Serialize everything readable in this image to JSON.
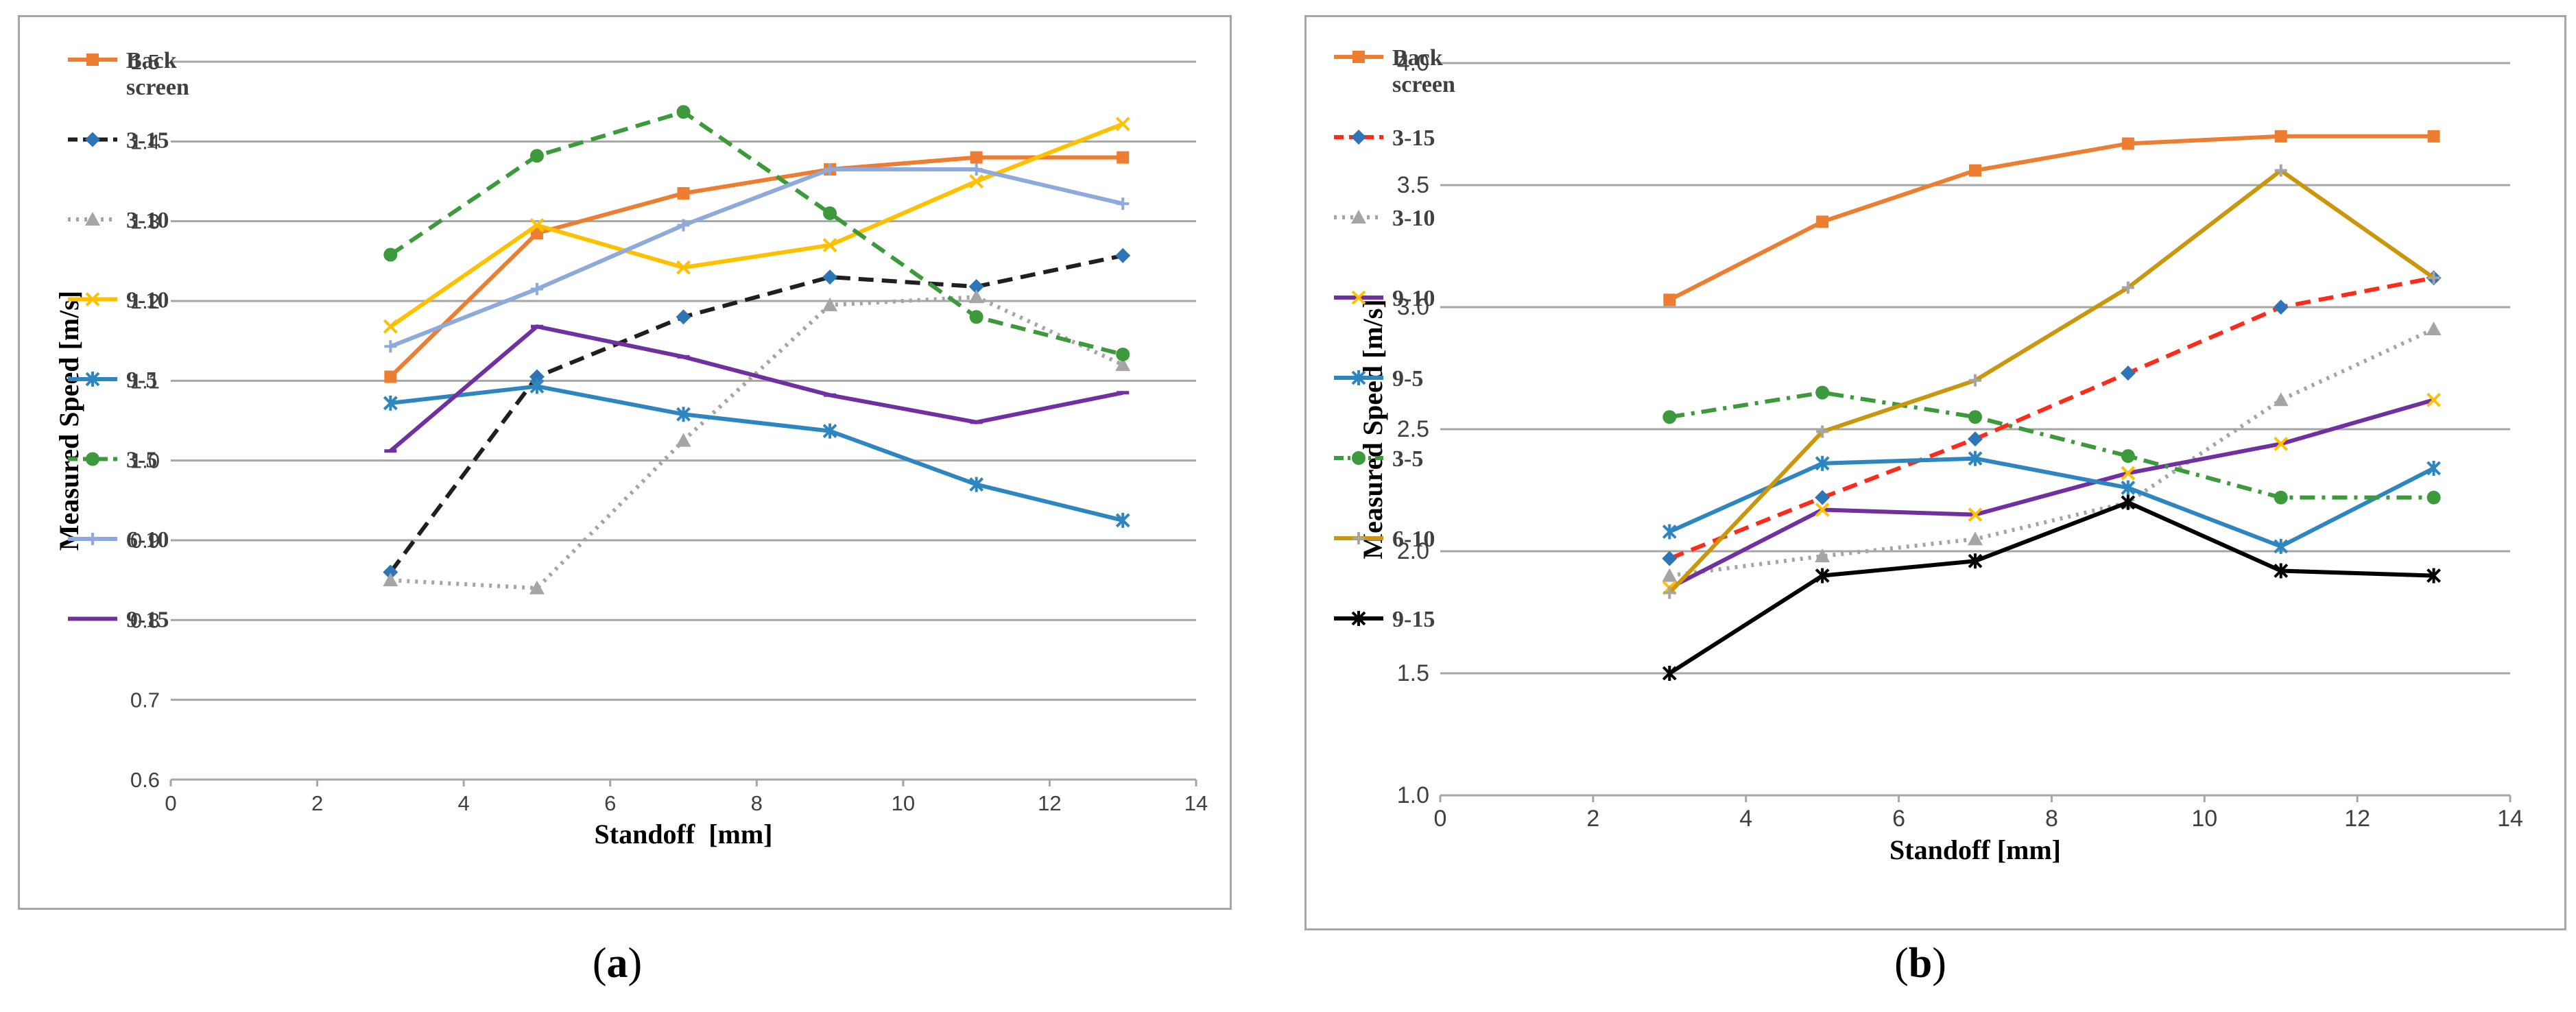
{
  "sublabels": {
    "a": "a",
    "b": "b"
  },
  "chart_data": [
    {
      "id": "a",
      "type": "line",
      "xlabel": "Standoff  [mm]",
      "ylabel": "Measured Speed [m/s]",
      "xlim": [
        0,
        14
      ],
      "ylim": [
        0.6,
        1.5
      ],
      "xticks": [
        0,
        2,
        4,
        6,
        8,
        10,
        12,
        14
      ],
      "yticks": [
        0.6,
        0.7,
        0.8,
        0.9,
        1.0,
        1.1,
        1.2,
        1.3,
        1.4,
        1.5
      ],
      "ytick_decimals": 1,
      "grid": "horizontal",
      "legend_placement": "left",
      "x": [
        3,
        5,
        7,
        9,
        11,
        13
      ],
      "series": [
        {
          "name": "Back screen",
          "values": [
            1.105,
            1.285,
            1.335,
            1.365,
            1.38,
            1.38
          ],
          "color": "#ED7D31",
          "dash": "solid",
          "marker": "square"
        },
        {
          "name": "3-15",
          "values": [
            0.86,
            1.105,
            1.18,
            1.23,
            1.218,
            1.257
          ],
          "color": "#1F1F1F",
          "dash": "dash",
          "marker": "diamond",
          "marker_color": "#2E75B6"
        },
        {
          "name": "3-10",
          "values": [
            0.85,
            0.84,
            1.025,
            1.195,
            1.205,
            1.12
          ],
          "color": "#A5A5A5",
          "dash": "dot",
          "marker": "triangle"
        },
        {
          "name": "9-10",
          "values": [
            1.168,
            1.295,
            1.242,
            1.27,
            1.35,
            1.422
          ],
          "color": "#FFC000",
          "dash": "solid",
          "marker": "x"
        },
        {
          "name": "9-5",
          "values": [
            1.072,
            1.093,
            1.058,
            1.037,
            0.97,
            0.925
          ],
          "color": "#2E86C1",
          "dash": "solid",
          "marker": "star"
        },
        {
          "name": "3-5",
          "values": [
            1.258,
            1.382,
            1.437,
            1.31,
            1.18,
            1.133
          ],
          "color": "#3C9A3C",
          "dash": "dash",
          "marker": "circle"
        },
        {
          "name": "6-10",
          "values": [
            1.143,
            1.215,
            1.295,
            1.365,
            1.365,
            1.322
          ],
          "color": "#8EA9DB",
          "dash": "solid",
          "marker": "plus"
        },
        {
          "name": "9-15",
          "values": [
            1.012,
            1.168,
            1.13,
            1.082,
            1.048,
            1.085
          ],
          "color": "#7030A0",
          "dash": "solid",
          "marker": "dash"
        }
      ]
    },
    {
      "id": "b",
      "type": "line",
      "xlabel": "Standoff [mm]",
      "ylabel": "Measured Speed [m/s]",
      "xlim": [
        0,
        14
      ],
      "ylim": [
        1.0,
        4.0
      ],
      "xticks": [
        0,
        2,
        4,
        6,
        8,
        10,
        12,
        14
      ],
      "yticks": [
        1.0,
        1.5,
        2.0,
        2.5,
        3.0,
        3.5,
        4.0
      ],
      "ytick_decimals": 1,
      "grid": "horizontal",
      "legend_placement": "left",
      "x": [
        3,
        5,
        7,
        9,
        11,
        13
      ],
      "series": [
        {
          "name": "Back screen",
          "values": [
            3.03,
            3.35,
            3.56,
            3.67,
            3.7,
            3.7
          ],
          "color": "#ED7D31",
          "dash": "solid",
          "marker": "square"
        },
        {
          "name": "3-15",
          "values": [
            1.97,
            2.22,
            2.46,
            2.73,
            3.0,
            3.12
          ],
          "color": "#FF2A1A",
          "dash": "dash",
          "marker": "diamond",
          "marker_color": "#2E75B6"
        },
        {
          "name": "3-10",
          "values": [
            1.9,
            1.98,
            2.05,
            2.2,
            2.62,
            2.91
          ],
          "color": "#A5A5A5",
          "dash": "dot",
          "marker": "triangle"
        },
        {
          "name": "9-10",
          "values": [
            1.85,
            2.17,
            2.15,
            2.32,
            2.44,
            2.62
          ],
          "color": "#7030A0",
          "dash": "solid",
          "marker": "x",
          "marker_color": "#FFC000"
        },
        {
          "name": "9-5",
          "values": [
            2.08,
            2.36,
            2.38,
            2.26,
            2.02,
            2.34
          ],
          "color": "#2E86C1",
          "dash": "solid",
          "marker": "star"
        },
        {
          "name": "3-5",
          "values": [
            2.55,
            2.65,
            2.55,
            2.39,
            2.22,
            2.22
          ],
          "color": "#3C9A3C",
          "dash": "dashdot",
          "marker": "circle"
        },
        {
          "name": "6-10",
          "values": [
            1.83,
            2.49,
            2.7,
            3.08,
            3.56,
            3.12
          ],
          "color": "#C9960C",
          "dash": "solid",
          "marker": "plus",
          "marker_color": "#A5A5A5"
        },
        {
          "name": "9-15",
          "values": [
            1.5,
            1.9,
            1.96,
            2.2,
            1.92,
            1.9
          ],
          "color": "#000000",
          "dash": "solid",
          "marker": "asterisk"
        }
      ]
    }
  ]
}
